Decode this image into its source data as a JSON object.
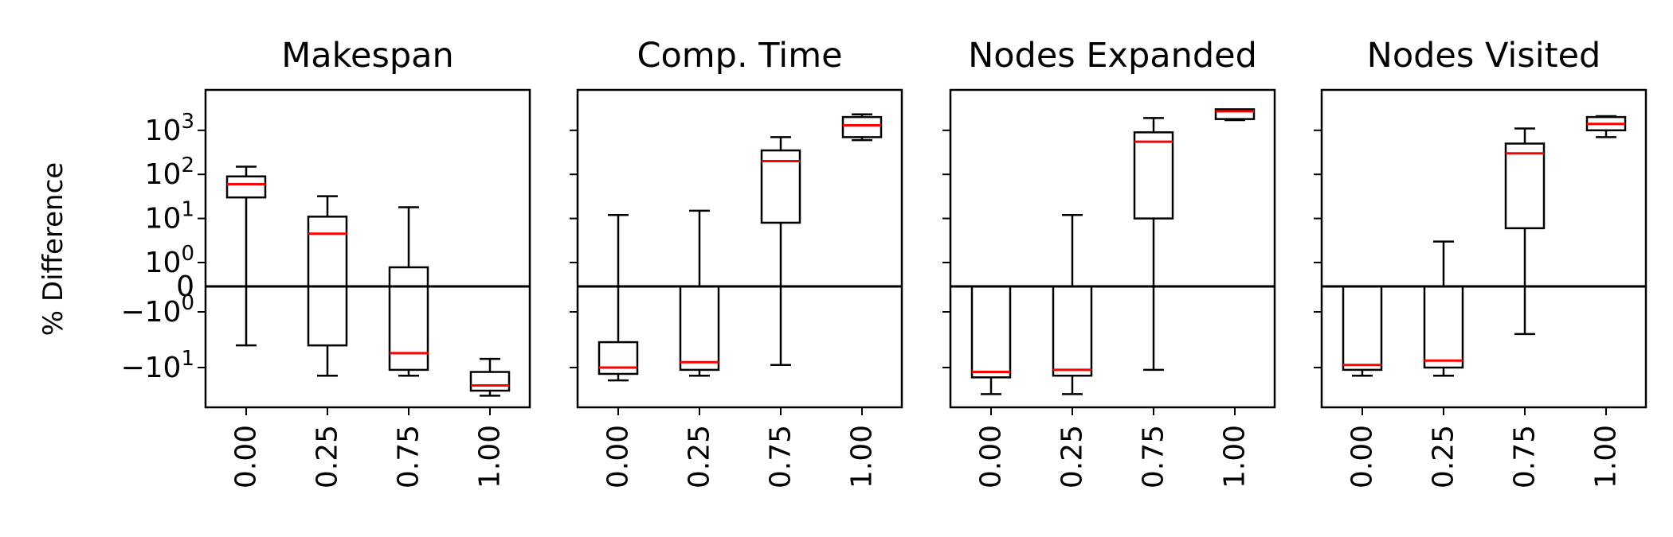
{
  "chart_data": [
    {
      "type": "box",
      "title": "Makespan",
      "ylabel": "% Difference",
      "yscale": "symlog",
      "categories": [
        "0.00",
        "0.25",
        "0.75",
        "1.00"
      ],
      "yticks": [
        "10^3",
        "10^2",
        "10^1",
        "10^0",
        "0",
        "−10^0",
        "−10^1"
      ],
      "ytick_values": [
        1000,
        100,
        10,
        1,
        0,
        -1,
        -10
      ],
      "ylim": [
        -30,
        3000
      ],
      "reference_line": 0,
      "boxes": [
        {
          "category": "0.00",
          "whisker_low": -4,
          "q1": 30,
          "median": 60,
          "q3": 90,
          "whisker_high": 150
        },
        {
          "category": "0.25",
          "whisker_low": -14,
          "q1": -4,
          "median": 4.5,
          "q3": 11,
          "whisker_high": 32
        },
        {
          "category": "0.75",
          "whisker_low": -14,
          "q1": -11,
          "median": -5.5,
          "q3": 0.8,
          "whisker_high": 18
        },
        {
          "category": "1.00",
          "whisker_low": -32,
          "q1": -26,
          "median": -21,
          "q3": -12,
          "whisker_high": -7
        }
      ]
    },
    {
      "type": "box",
      "title": "Comp. Time",
      "yscale": "symlog",
      "categories": [
        "0.00",
        "0.25",
        "0.75",
        "1.00"
      ],
      "ylim": [
        -30,
        3000
      ],
      "reference_line": 0,
      "boxes": [
        {
          "category": "0.00",
          "whisker_low": -17,
          "q1": -13,
          "median": -10,
          "q3": -3.5,
          "whisker_high": 12
        },
        {
          "category": "0.25",
          "whisker_low": -14,
          "q1": -11,
          "median": -8,
          "q3": 0,
          "whisker_high": 15
        },
        {
          "category": "0.75",
          "whisker_low": -9,
          "q1": 8,
          "median": 200,
          "q3": 350,
          "whisker_high": 700
        },
        {
          "category": "1.00",
          "whisker_low": 600,
          "q1": 700,
          "median": 1300,
          "q3": 2000,
          "whisker_high": 2300
        }
      ]
    },
    {
      "type": "box",
      "title": "Nodes Expanded",
      "yscale": "symlog",
      "categories": [
        "0.00",
        "0.25",
        "0.75",
        "1.00"
      ],
      "ylim": [
        -30,
        3000
      ],
      "reference_line": 0,
      "boxes": [
        {
          "category": "0.00",
          "whisker_low": -30,
          "q1": -15,
          "median": -12,
          "q3": 0,
          "whisker_high": 0
        },
        {
          "category": "0.25",
          "whisker_low": -30,
          "q1": -14,
          "median": -11,
          "q3": 0,
          "whisker_high": 12
        },
        {
          "category": "0.75",
          "whisker_low": -11,
          "q1": 10,
          "median": 550,
          "q3": 900,
          "whisker_high": 1900
        },
        {
          "category": "1.00",
          "whisker_low": 1700,
          "q1": 1800,
          "median": 2700,
          "q3": 3000,
          "whisker_high": 3000
        }
      ]
    },
    {
      "type": "box",
      "title": "Nodes Visited",
      "yscale": "symlog",
      "categories": [
        "0.00",
        "0.25",
        "0.75",
        "1.00"
      ],
      "ylim": [
        -30,
        3000
      ],
      "reference_line": 0,
      "boxes": [
        {
          "category": "0.00",
          "whisker_low": -14,
          "q1": -11,
          "median": -9,
          "q3": 0,
          "whisker_high": 0
        },
        {
          "category": "0.25",
          "whisker_low": -14,
          "q1": -10,
          "median": -7.5,
          "q3": 0,
          "whisker_high": 3
        },
        {
          "category": "0.75",
          "whisker_low": -2.5,
          "q1": 6,
          "median": 300,
          "q3": 500,
          "whisker_high": 1100
        },
        {
          "category": "1.00",
          "whisker_low": 700,
          "q1": 1000,
          "median": 1400,
          "q3": 2000,
          "whisker_high": 2100
        }
      ]
    }
  ],
  "colors": {
    "box": "#000000",
    "median": "#ff0000",
    "reference_line": "#000000"
  }
}
